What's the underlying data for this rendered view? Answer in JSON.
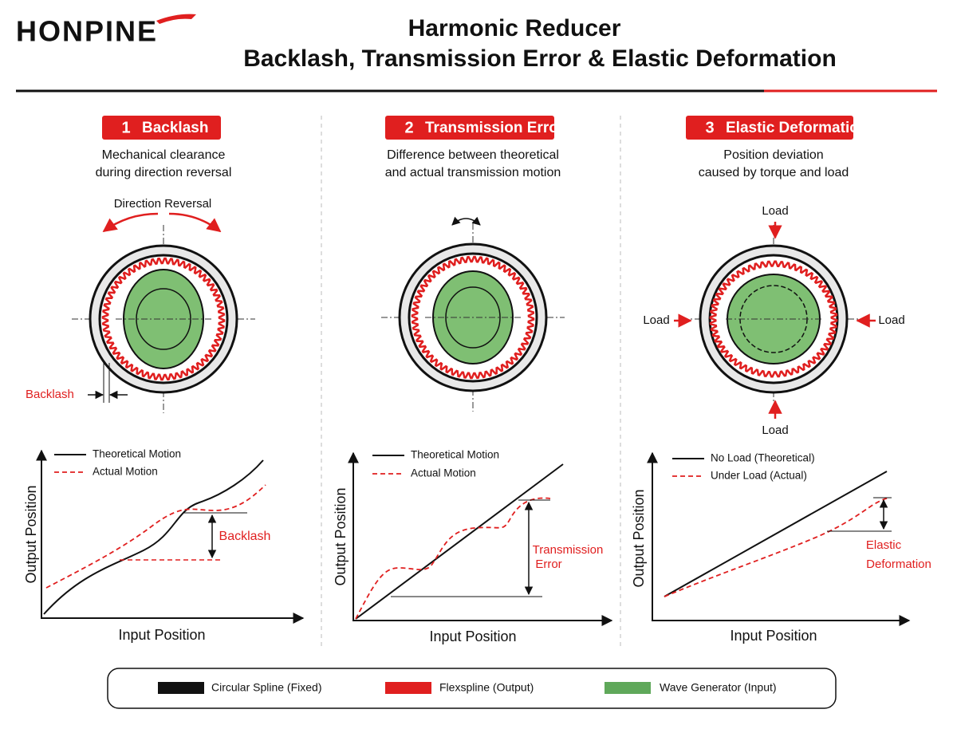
{
  "header": {
    "logo": "HONPINE",
    "title": [
      "Harmonic Reducer",
      "Backlash, Transmission Error & Elastic Deformation"
    ]
  },
  "panels": [
    {
      "number": "1",
      "heading": "Backlash",
      "description": [
        "Mechanical clearance",
        "during direction reversal"
      ],
      "diagram_labels": [
        "Direction Reversal",
        "Backlash"
      ],
      "graph": {
        "legend": [
          "Theoretical Motion",
          "Actual Motion"
        ],
        "y_axis": "Output Position",
        "x_axis": "Input Position",
        "annotation": [
          "Backlash"
        ]
      }
    },
    {
      "number": "2",
      "heading": "Transmission Error",
      "description": [
        "Difference between theoretical",
        "and actual transmission motion"
      ],
      "diagram_labels": [],
      "graph": {
        "legend": [
          "Theoretical Motion",
          "Actual Motion"
        ],
        "y_axis": "Output Position",
        "x_axis": "Input Position",
        "annotation": [
          "Transmission",
          "Error"
        ]
      }
    },
    {
      "number": "3",
      "heading": "Elastic Deformation",
      "description": [
        "Position deviation",
        "caused by torque and load"
      ],
      "diagram_labels": [
        "Load",
        "Load",
        "Load",
        "Load"
      ],
      "graph": {
        "legend": [
          "No Load (Theoretical)",
          "Under Load (Actual)"
        ],
        "y_axis": "Output Position",
        "x_axis": "Input Position",
        "annotation": [
          "Elastic",
          "Deformation"
        ]
      }
    }
  ],
  "legend": [
    "Circular Spline (Fixed)",
    "Flexspline (Output)",
    "Wave Generator (Input)"
  ]
}
